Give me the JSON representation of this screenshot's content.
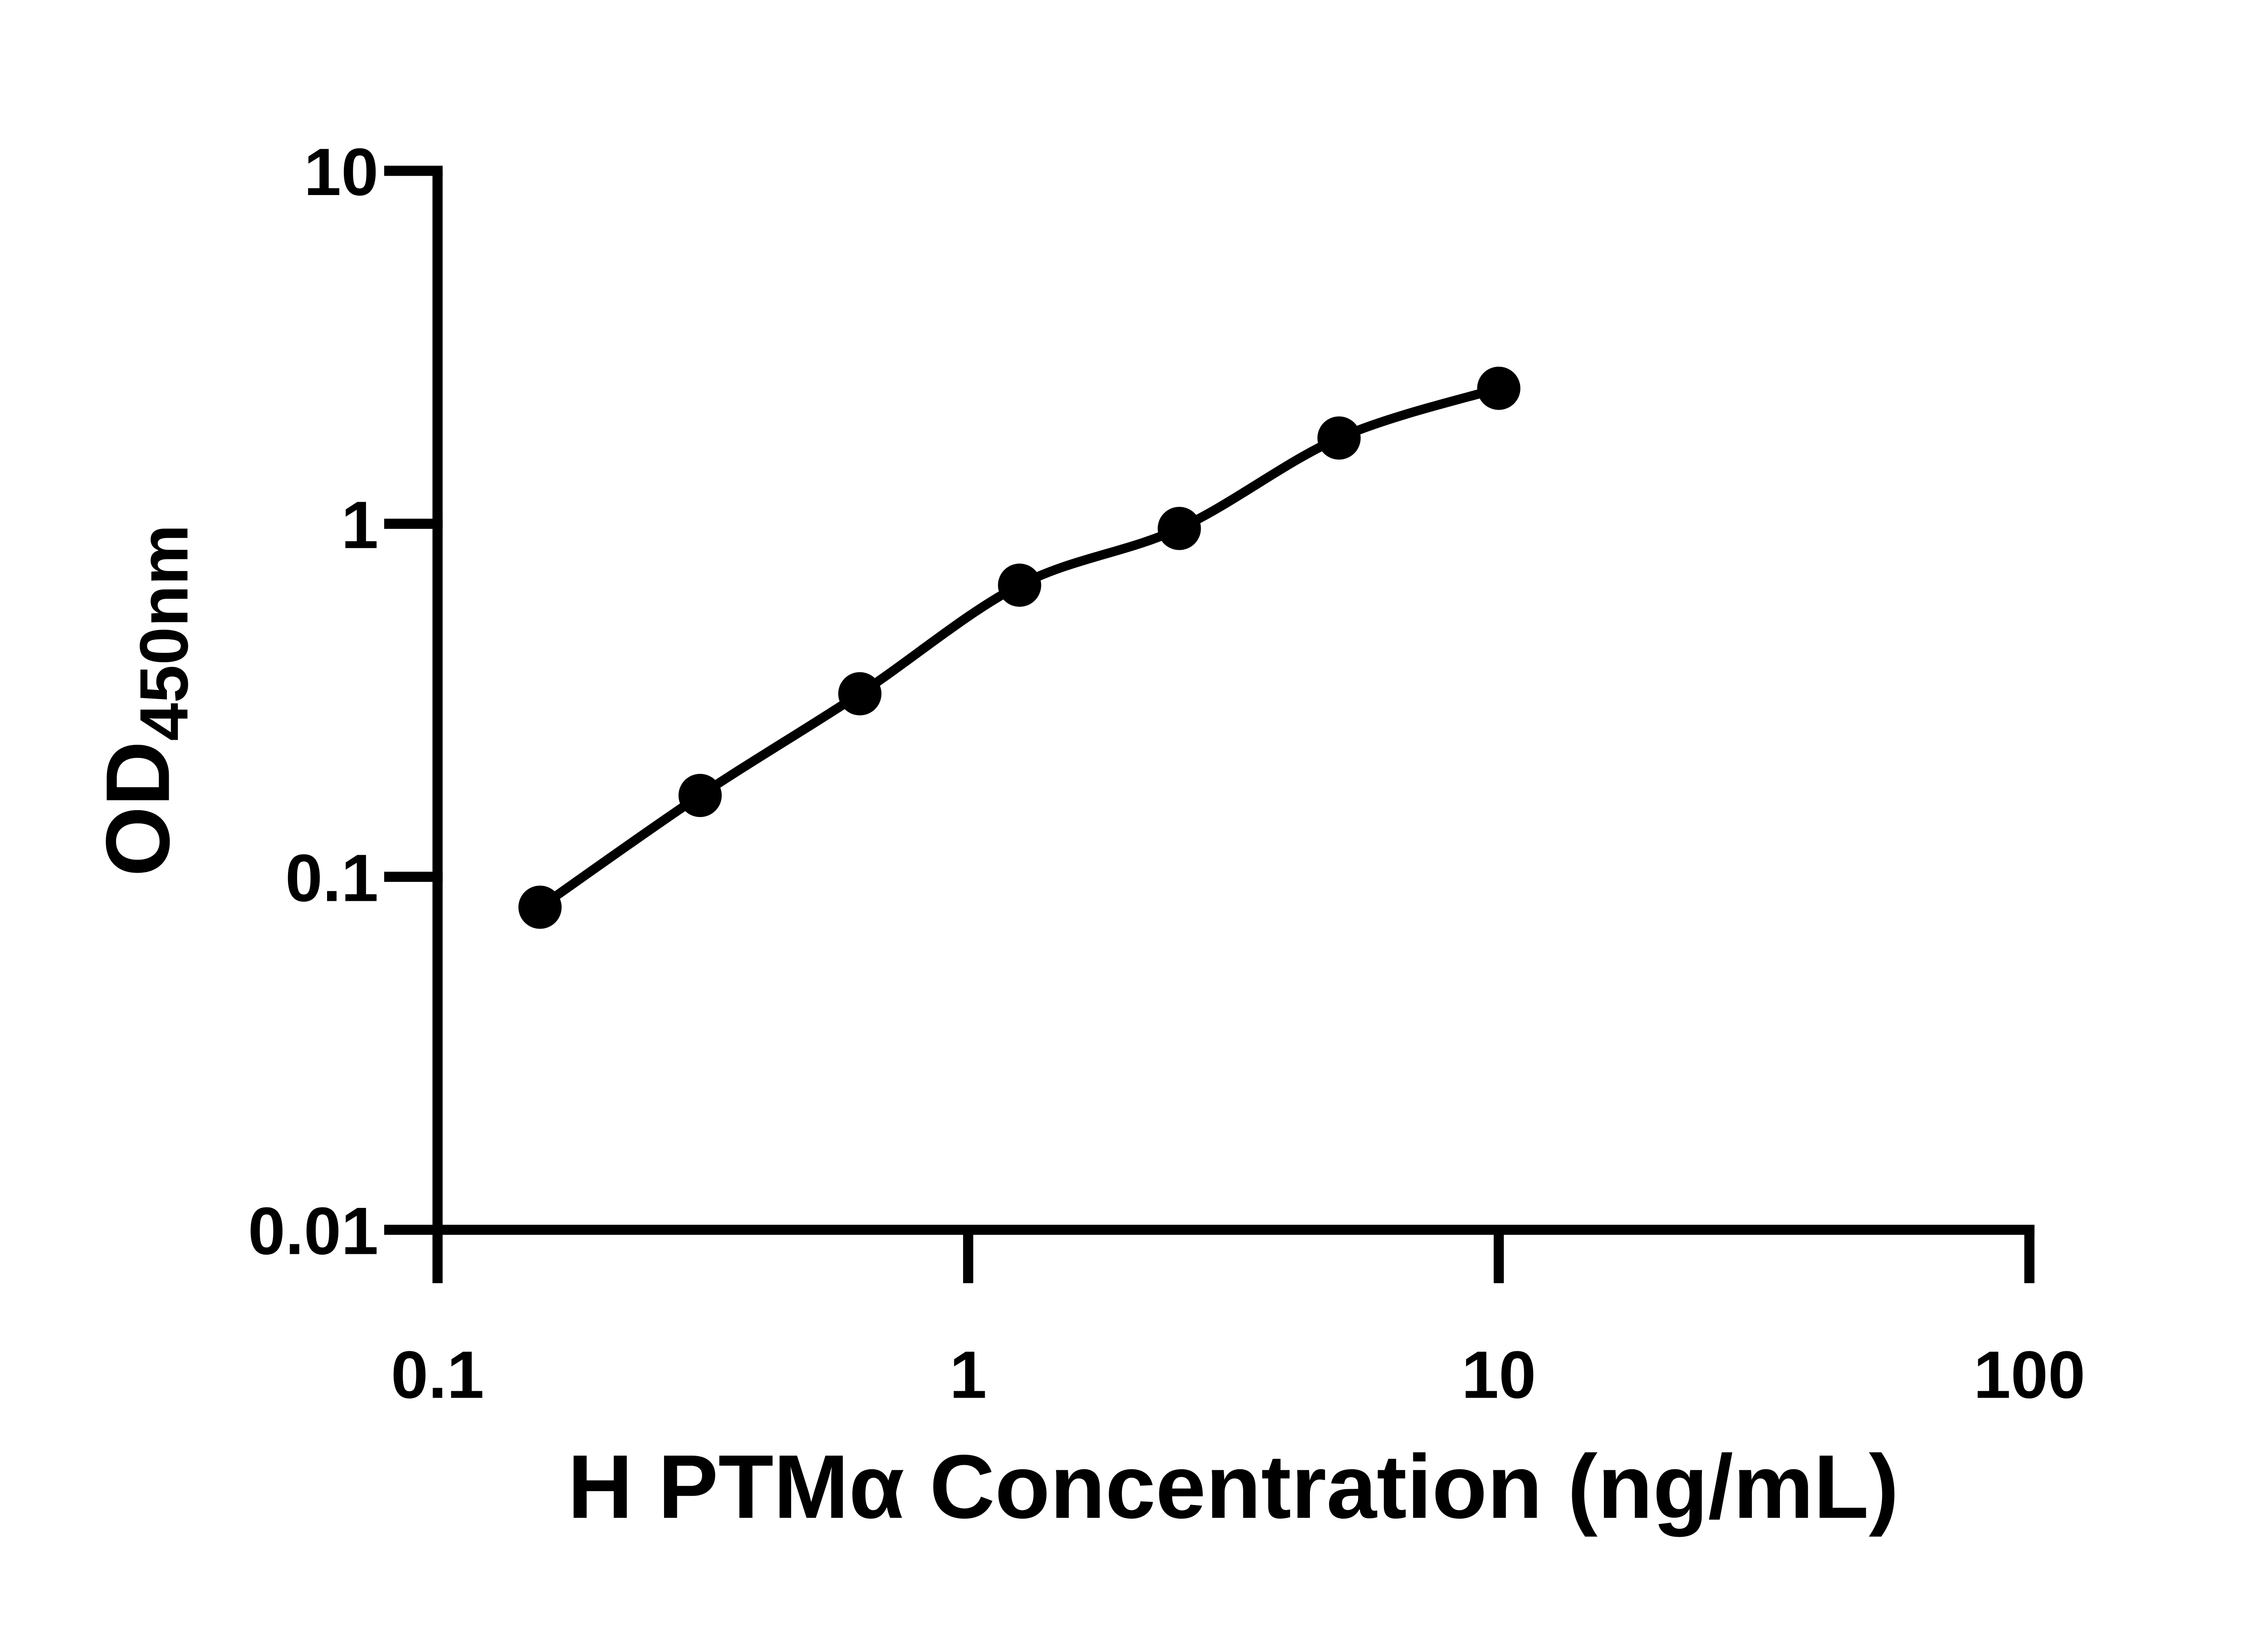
{
  "chart_data": {
    "type": "line",
    "scale": "log-log",
    "title": "",
    "xlabel": "H PTMα Concentration (ng/mL)",
    "ylabel_main": "OD",
    "ylabel_sub": "450nm",
    "x": [
      0.156,
      0.3125,
      0.625,
      1.25,
      2.5,
      5,
      10
    ],
    "y": [
      0.082,
      0.17,
      0.33,
      0.67,
      0.97,
      1.75,
      2.42
    ],
    "xlim": [
      0.1,
      100
    ],
    "ylim": [
      0.01,
      10
    ],
    "x_ticks": [
      0.1,
      1,
      10,
      100
    ],
    "x_tick_labels": [
      "0.1",
      "1",
      "10",
      "100"
    ],
    "y_ticks": [
      0.01,
      0.1,
      1,
      10
    ],
    "y_tick_labels": [
      "0.01",
      "0.1",
      "1",
      "10"
    ],
    "grid": false,
    "legend": "none",
    "marker": "filled-circle",
    "line_color": "#000000",
    "marker_color": "#000000",
    "axis_color": "#000000",
    "text_color": "#000000",
    "background_color": "#ffffff"
  }
}
